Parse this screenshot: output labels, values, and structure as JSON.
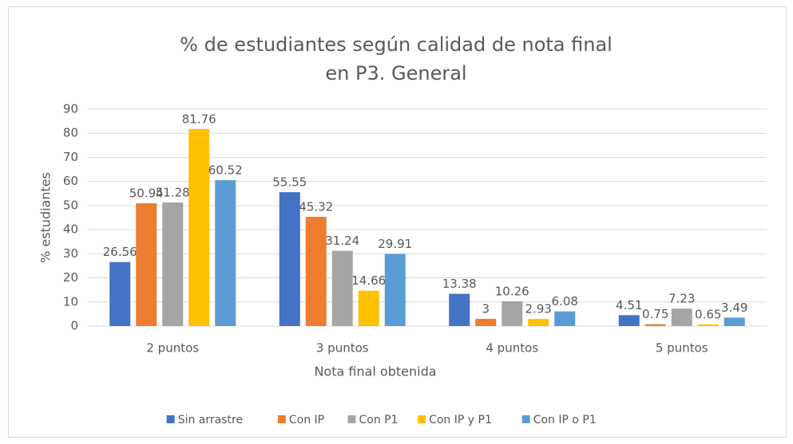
{
  "chart_data": {
    "type": "bar",
    "title": "% de estudiantes según calidad de nota final en P3. General",
    "x_label": "Nota final obtenida",
    "y_label": "% estudiantes",
    "categories": [
      "2 puntos",
      "3 puntos",
      "4 puntos",
      "5 puntos"
    ],
    "series": [
      {
        "name": "Sin arrastre",
        "color": "#4472c4",
        "values": [
          26.56,
          55.55,
          13.38,
          4.51
        ]
      },
      {
        "name": "Con IP",
        "color": "#ed7d31",
        "values": [
          50.94,
          45.32,
          3,
          0.75
        ]
      },
      {
        "name": "Con P1",
        "color": "#a5a5a5",
        "values": [
          51.28,
          31.24,
          10.26,
          7.23
        ]
      },
      {
        "name": "Con IP y P1",
        "color": "#ffc000",
        "values": [
          81.76,
          14.66,
          2.93,
          0.65
        ]
      },
      {
        "name": "Con IP o P1",
        "color": "#5b9bd5",
        "values": [
          60.52,
          29.91,
          6.08,
          3.49
        ]
      }
    ],
    "ylim": [
      0,
      90
    ],
    "yticks": [
      0,
      10,
      20,
      30,
      40,
      50,
      60,
      70,
      80,
      90
    ],
    "grid": true,
    "legend": "bottom"
  }
}
